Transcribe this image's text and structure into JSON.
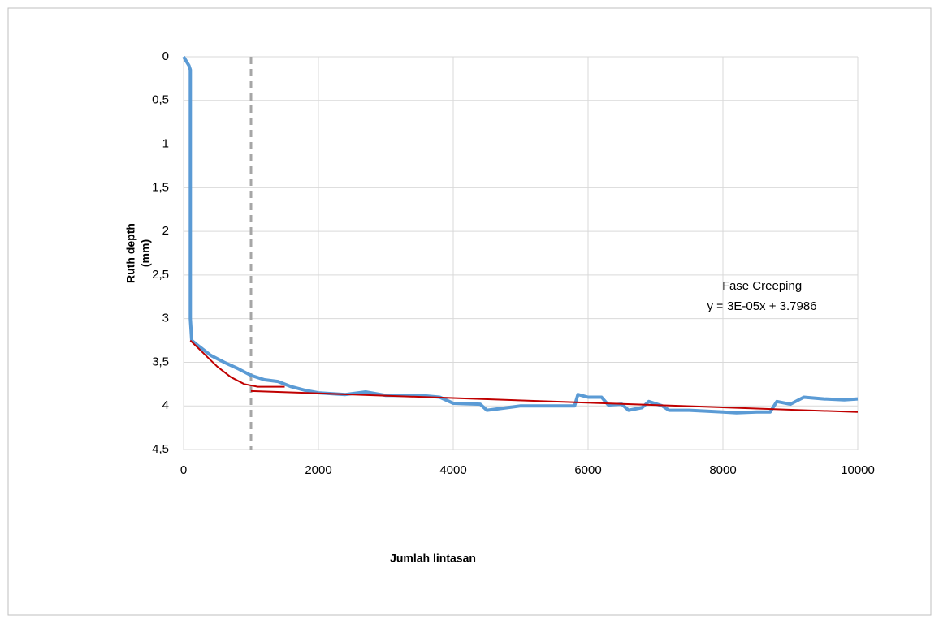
{
  "chart_data": {
    "type": "line",
    "x_label": "Jumlah lintasan",
    "y_label": [
      "Ruth depth",
      "(mm)"
    ],
    "annotation": [
      "Fase Creeping",
      "y = 3E-05x + 3.7986"
    ],
    "xlim": [
      0,
      10000
    ],
    "xticks": [
      0,
      2000,
      4000,
      6000,
      8000,
      10000
    ],
    "ylim": [
      0,
      4.5
    ],
    "y_inverted": true,
    "yticks": [
      0,
      {
        "value": 0.5,
        "label": "0,5"
      },
      1,
      {
        "value": 1.5,
        "label": "1,5"
      },
      2,
      {
        "value": 2.5,
        "label": "2,5"
      },
      3,
      {
        "value": 3.5,
        "label": "3,5"
      },
      4,
      {
        "value": 4.5,
        "label": "4,5"
      }
    ],
    "grid": true,
    "legend": false,
    "series": [
      {
        "color": "#a6a6a6",
        "dash": true,
        "width": 3,
        "x": [
          1000,
          1000
        ],
        "values": [
          0,
          4.5
        ]
      },
      {
        "color": "#5b9bd5",
        "dash": false,
        "width": 4,
        "x": [
          0,
          40,
          80,
          100,
          100,
          120,
          200,
          400,
          600,
          800,
          1000,
          1200,
          1400,
          1600,
          1800,
          2000,
          2400,
          2700,
          3000,
          3500,
          3800,
          4000,
          4400,
          4500,
          4800,
          5000,
          5200,
          5800,
          5850,
          6000,
          6200,
          6300,
          6500,
          6600,
          6800,
          6900,
          7100,
          7200,
          7500,
          8000,
          8200,
          8500,
          8700,
          8800,
          9000,
          9200,
          9500,
          9800,
          10000
        ],
        "values": [
          0,
          0.05,
          0.1,
          0.15,
          3.0,
          3.25,
          3.3,
          3.42,
          3.5,
          3.57,
          3.65,
          3.7,
          3.72,
          3.78,
          3.82,
          3.85,
          3.87,
          3.84,
          3.88,
          3.88,
          3.9,
          3.97,
          3.98,
          4.05,
          4.02,
          4.0,
          4.0,
          4.0,
          3.87,
          3.9,
          3.9,
          3.99,
          3.98,
          4.05,
          4.02,
          3.95,
          4.0,
          4.05,
          4.05,
          4.07,
          4.08,
          4.07,
          4.07,
          3.95,
          3.98,
          3.9,
          3.92,
          3.93,
          3.92
        ]
      },
      {
        "color": "#c00000",
        "dash": false,
        "width": 2,
        "x": [
          100,
          300,
          500,
          700,
          900,
          1100,
          1500
        ],
        "values": [
          3.25,
          3.4,
          3.55,
          3.67,
          3.75,
          3.78,
          3.78
        ]
      },
      {
        "color": "#c00000",
        "dash": false,
        "width": 2,
        "x": [
          1000,
          10000
        ],
        "values": [
          3.83,
          4.07
        ]
      }
    ]
  }
}
